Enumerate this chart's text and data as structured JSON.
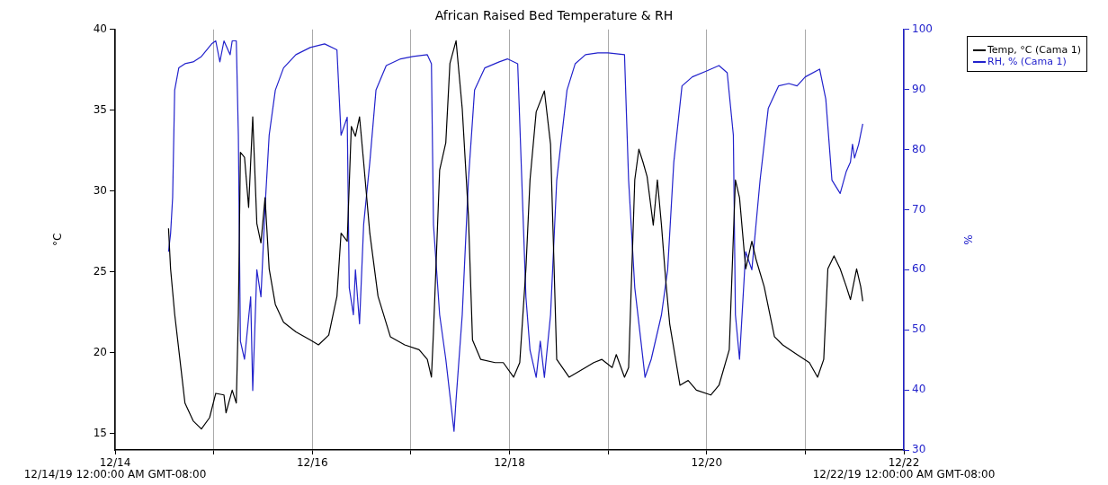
{
  "chart_data": {
    "type": "line",
    "title": "African Raised Bed Temperature & RH",
    "ylabel": "°C",
    "y2label": "%",
    "xlim": [
      "--12-14",
      "--12-22"
    ],
    "xticks": [
      {
        "value": "--12-14",
        "label": "12/14"
      },
      {
        "value": "--12-15",
        "label": null
      },
      {
        "value": "--12-16",
        "label": "12/16"
      },
      {
        "value": "--12-17",
        "label": null
      },
      {
        "value": "--12-18",
        "label": "12/18"
      },
      {
        "value": "--12-19",
        "label": null
      },
      {
        "value": "--12-20",
        "label": "12/20"
      },
      {
        "value": "--12-21",
        "label": null
      },
      {
        "value": "--12-22",
        "label": "12/22"
      }
    ],
    "ylim": [
      14,
      40
    ],
    "yticks": [
      15,
      20,
      25,
      30,
      35,
      40
    ],
    "y2lim": [
      30,
      100
    ],
    "y2ticks": [
      30,
      40,
      50,
      60,
      70,
      80,
      90,
      100
    ],
    "grid": "x",
    "legend": "top right",
    "marker": "none",
    "line_style": "solid",
    "annotations": [
      "12/14/19 12:00:00 AM GMT-08:00",
      "12/22/19 12:00:00 AM GMT-08:00"
    ],
    "series": [
      {
        "name": "Temp, °C (Cama 1)",
        "color": "#000000",
        "x": [
          "--12-14T13:00",
          "--12-14T13:30",
          "--12-14T14:30",
          "--12-14T16:00",
          "--12-14T17:00",
          "--12-14T19:00",
          "--12-14T21:00",
          "--12-14T23:00",
          "--12-15T00:30",
          "--12-15T02:30",
          "--12-15T03:00",
          "--12-15T04:30",
          "--12-15T05:30",
          "--12-15T06:00",
          "--12-15T06:30",
          "--12-15T07:30",
          "--12-15T08:30",
          "--12-15T09:30",
          "--12-15T10:30",
          "--12-15T11:30",
          "--12-15T12:30",
          "--12-15T13:30",
          "--12-15T15:00",
          "--12-15T17:00",
          "--12-15T20:00",
          "--12-15T23:30",
          "--12-16T01:30",
          "--12-16T04:00",
          "--12-16T06:00",
          "--12-16T07:00",
          "--12-16T08:30",
          "--12-16T09:30",
          "--12-16T10:30",
          "--12-16T11:30",
          "--12-16T12:30",
          "--12-16T14:00",
          "--12-16T16:00",
          "--12-16T19:00",
          "--12-16T22:30",
          "--12-17T02:00",
          "--12-17T04:00",
          "--12-17T05:00",
          "--12-17T05:30",
          "--12-17T07:00",
          "--12-17T08:30",
          "--12-17T09:30",
          "--12-17T11:00",
          "--12-17T12:30",
          "--12-17T14:00",
          "--12-17T15:00",
          "--12-17T17:00",
          "--12-17T20:30",
          "--12-17T22:30",
          "--12-18T01:00",
          "--12-18T02:30",
          "--12-18T04:00",
          "--12-18T05:00",
          "--12-18T06:30",
          "--12-18T08:30",
          "--12-18T10:00",
          "--12-18T11:30",
          "--12-18T14:30",
          "--12-18T18:30",
          "--12-18T20:30",
          "--12-18T22:30",
          "--12-19T01:00",
          "--12-19T02:00",
          "--12-19T04:00",
          "--12-19T05:00",
          "--12-19T06:30",
          "--12-19T07:30",
          "--12-19T08:30",
          "--12-19T09:30",
          "--12-19T11:00",
          "--12-19T12:00",
          "--12-19T13:00",
          "--12-19T14:00",
          "--12-19T15:00",
          "--12-19T17:30",
          "--12-19T19:30",
          "--12-19T21:30",
          "--12-20T01:00",
          "--12-20T03:00",
          "--12-20T05:30",
          "--12-20T07:00",
          "--12-20T08:00",
          "--12-20T09:30",
          "--12-20T11:00",
          "--12-20T12:00",
          "--12-20T14:00",
          "--12-20T16:30",
          "--12-20T18:30",
          "--12-20T22:00",
          "--12-21T01:00",
          "--12-21T03:00",
          "--12-21T04:30",
          "--12-21T05:30",
          "--12-21T07:00",
          "--12-21T08:30",
          "--12-21T10:00",
          "--12-21T11:00",
          "--12-21T12:30",
          "--12-21T13:30",
          "--12-21T14:00"
        ],
        "values": [
          27.7,
          25.2,
          22.4,
          19.1,
          16.9,
          15.8,
          15.3,
          16.0,
          17.5,
          17.4,
          16.3,
          17.7,
          16.9,
          22.4,
          32.4,
          32.1,
          29.0,
          34.6,
          28.0,
          26.8,
          29.6,
          25.2,
          23.0,
          21.9,
          21.3,
          20.8,
          20.5,
          21.1,
          23.5,
          27.4,
          26.9,
          34.0,
          33.4,
          34.6,
          31.8,
          27.4,
          23.5,
          21.0,
          20.5,
          20.2,
          19.6,
          18.5,
          21.3,
          31.3,
          33.0,
          37.9,
          39.3,
          35.1,
          28.5,
          20.8,
          19.6,
          19.4,
          19.4,
          18.5,
          19.4,
          25.2,
          30.7,
          34.9,
          36.2,
          32.9,
          19.6,
          18.5,
          19.1,
          19.4,
          19.6,
          19.1,
          19.9,
          18.5,
          19.1,
          30.7,
          32.6,
          31.8,
          30.9,
          27.9,
          30.7,
          27.9,
          24.6,
          21.8,
          18.0,
          18.3,
          17.7,
          17.4,
          18.0,
          20.2,
          30.7,
          29.6,
          25.2,
          26.9,
          25.8,
          24.1,
          21.0,
          20.5,
          19.9,
          19.4,
          18.5,
          19.6,
          25.2,
          26.0,
          25.2,
          24.1,
          23.3,
          25.2,
          24.1,
          23.2
        ]
      },
      {
        "name": "RH, % (Cama 1)",
        "color": "#2222cc",
        "axis": "y2",
        "x": [
          "--12-14T13:00",
          "--12-14T13:30",
          "--12-14T14:00",
          "--12-14T14:30",
          "--12-14T15:30",
          "--12-14T17:00",
          "--12-14T19:00",
          "--12-14T21:00",
          "--12-14T23:30",
          "--12-15T00:30",
          "--12-15T01:30",
          "--12-15T02:30",
          "--12-15T04:00",
          "--12-15T04:30",
          "--12-15T05:30",
          "--12-15T06:00",
          "--12-15T06:30",
          "--12-15T07:30",
          "--12-15T09:00",
          "--12-15T09:30",
          "--12-15T10:30",
          "--12-15T11:30",
          "--12-15T12:30",
          "--12-15T13:30",
          "--12-15T15:00",
          "--12-15T17:00",
          "--12-15T20:00",
          "--12-15T23:30",
          "--12-16T03:00",
          "--12-16T06:00",
          "--12-16T07:00",
          "--12-16T08:30",
          "--12-16T09:00",
          "--12-16T10:00",
          "--12-16T10:30",
          "--12-16T11:30",
          "--12-16T12:30",
          "--12-16T14:00",
          "--12-16T15:30",
          "--12-16T18:00",
          "--12-16T21:30",
          "--12-17T00:30",
          "--12-17T04:00",
          "--12-17T05:00",
          "--12-17T05:30",
          "--12-17T07:00",
          "--12-17T08:30",
          "--12-17T09:30",
          "--12-17T10:30",
          "--12-17T11:00",
          "--12-17T12:30",
          "--12-17T14:00",
          "--12-17T15:30",
          "--12-17T18:00",
          "--12-17T21:30",
          "--12-17T23:30",
          "--12-18T02:00",
          "--12-18T03:00",
          "--12-18T04:00",
          "--12-18T05:00",
          "--12-18T06:30",
          "--12-18T07:30",
          "--12-18T08:30",
          "--12-18T10:00",
          "--12-18T11:30",
          "--12-18T14:00",
          "--12-18T16:00",
          "--12-18T18:30",
          "--12-18T21:30",
          "--12-19T00:00",
          "--12-19T04:00",
          "--12-19T05:00",
          "--12-19T06:30",
          "--12-19T08:00",
          "--12-19T09:00",
          "--12-19T10:30",
          "--12-19T13:00",
          "--12-19T14:30",
          "--12-19T16:00",
          "--12-19T18:00",
          "--12-19T20:30",
          "--12-20T00:00",
          "--12-20T03:00",
          "--12-20T05:00",
          "--12-20T06:30",
          "--12-20T07:00",
          "--12-20T08:00",
          "--12-20T09:30",
          "--12-20T11:00",
          "--12-20T13:00",
          "--12-20T15:00",
          "--12-20T17:30",
          "--12-20T20:00",
          "--12-20T22:00",
          "--12-21T00:00",
          "--12-21T03:30",
          "--12-21T05:00",
          "--12-21T06:30",
          "--12-21T08:30",
          "--12-21T10:00",
          "--12-21T11:00",
          "--12-21T11:30",
          "--12-21T12:00",
          "--12-21T13:00",
          "--12-21T14:00"
        ],
        "values": [
          63,
          66,
          72,
          89.9,
          93.6,
          94.3,
          94.6,
          95.5,
          97.6,
          98.1,
          94.6,
          98.1,
          95.8,
          98.1,
          98.1,
          82.4,
          48.1,
          45.1,
          55.5,
          39.9,
          60,
          55.5,
          70.4,
          82.4,
          89.9,
          93.6,
          95.8,
          97,
          97.6,
          96.6,
          82.4,
          85.4,
          57,
          52.5,
          60,
          51,
          67.5,
          77.9,
          89.9,
          94,
          95.1,
          95.5,
          95.8,
          94.3,
          67.5,
          52.5,
          45.1,
          39.1,
          33.1,
          38.4,
          52.5,
          74.9,
          89.9,
          93.6,
          94.6,
          95.1,
          94.3,
          74.9,
          55.5,
          46.6,
          42.1,
          48.1,
          42.1,
          52.5,
          74.9,
          89.9,
          94.3,
          95.8,
          96.1,
          96.1,
          95.8,
          74.9,
          57,
          48.1,
          42.1,
          45.1,
          52.5,
          60,
          77.9,
          90.6,
          92.1,
          93.1,
          94,
          92.8,
          82.4,
          52.5,
          45.1,
          63,
          60,
          74.9,
          86.9,
          90.6,
          91,
          90.6,
          92.1,
          93.4,
          88.4,
          74.9,
          72.7,
          76.4,
          77.9,
          80.9,
          78.6,
          80.9,
          84.3
        ]
      }
    ]
  }
}
